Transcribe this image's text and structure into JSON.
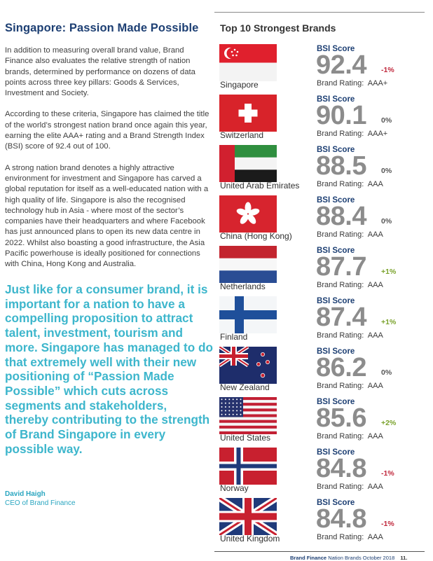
{
  "left": {
    "title": "Singapore: Passion Made Possible",
    "paragraphs": [
      "In addition to measuring overall brand value, Brand Finance also evaluates the relative strength of nation brands, determined by performance on dozens of data points across three key pillars: Goods & Services, Investment and Society.",
      "According to these criteria, Singapore has claimed the title of the world’s strongest nation brand once again this year, earning the elite AAA+ rating and a Brand Strength Index (BSI) score of 92.4 out of 100.",
      "A strong nation brand denotes a highly attractive environment for investment and Singapore has carved a global reputation for itself as a well-educated nation with a high quality of life. Singapore is also the recognised technology hub in Asia - where most of the sector’s companies have their headquarters and where Facebook has just announced plans to open its new data centre in 2022. Whilst also boasting a good infrastructure, the Asia Pacific powerhouse is ideally positioned for connections with China, Hong Kong and Australia."
    ],
    "quote": "Just like for a consumer brand, it is important for a nation to have a compelling proposition to attract talent, investment, tourism and more. Singapore has managed to do that extremely well with their new positioning of “Passion Made Possible” which cuts across segments and stakeholders, thereby contributing to the strength of Brand Singapore in every possible way.",
    "author_name": "David Haigh",
    "author_role": "CEO of Brand Finance"
  },
  "right": {
    "title": "Top 10 Strongest Brands",
    "bsi_label": "BSI Score",
    "rating_prefix": "Brand Rating:",
    "brands": [
      {
        "country": "Singapore",
        "score": "92.4",
        "change": "-1%",
        "rating": "AAA+",
        "flag": "singapore-flag-icon"
      },
      {
        "country": "Switzerland",
        "score": "90.1",
        "change": "0%",
        "rating": "AAA+",
        "flag": "switzerland-flag-icon"
      },
      {
        "country": "United Arab Emirates",
        "score": "88.5",
        "change": "0%",
        "rating": "AAA",
        "flag": "uae-flag-icon"
      },
      {
        "country": "China (Hong Kong)",
        "score": "88.4",
        "change": "0%",
        "rating": "AAA",
        "flag": "hong-kong-flag-icon"
      },
      {
        "country": "Netherlands",
        "score": "87.7",
        "change": "+1%",
        "rating": "AAA",
        "flag": "netherlands-flag-icon"
      },
      {
        "country": "Finland",
        "score": "87.4",
        "change": "+1%",
        "rating": "AAA",
        "flag": "finland-flag-icon"
      },
      {
        "country": "New Zealand",
        "score": "86.2",
        "change": "0%",
        "rating": "AAA",
        "flag": "new-zealand-flag-icon"
      },
      {
        "country": "United States",
        "score": "85.6",
        "change": "+2%",
        "rating": "AAA",
        "flag": "united-states-flag-icon"
      },
      {
        "country": "Norway",
        "score": "84.8",
        "change": "-1%",
        "rating": "AAA",
        "flag": "norway-flag-icon"
      },
      {
        "country": "United Kingdom",
        "score": "84.8",
        "change": "-1%",
        "rating": "AAA",
        "flag": "united-kingdom-flag-icon"
      }
    ]
  },
  "footer": {
    "publisher": "Brand Finance",
    "report": "Nation Brands October 2018",
    "page": "11."
  },
  "colors": {
    "heading_blue": "#1d3f73",
    "quote_teal": "#3db6cc",
    "negative": "#c0283c",
    "positive": "#7aa22c",
    "neutral": "#555555",
    "score_grey": "#8c8c8c"
  }
}
